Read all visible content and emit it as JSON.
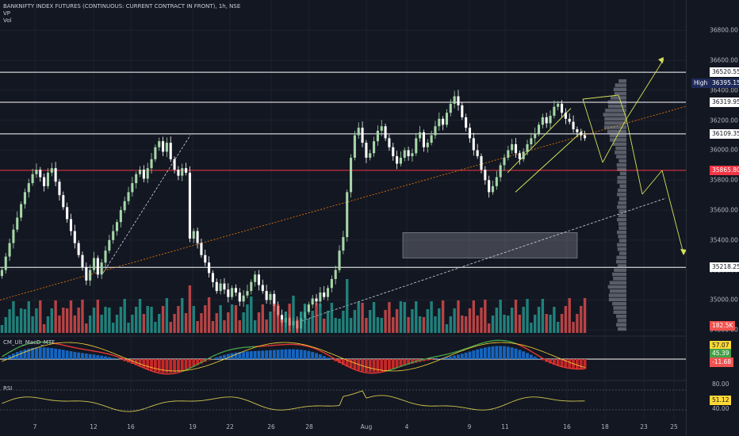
{
  "header": {
    "title": "BANKNIFTY INDEX FUTURES (CONTINUOUS: CURRENT CONTRACT IN FRONT), 1h, NSE",
    "line2": "VP",
    "line3": "Vol"
  },
  "panes": {
    "macd_label": "CM_Ult_MacD_MTF",
    "rsi_label": "RSI"
  },
  "colors": {
    "background": "#131722",
    "up": "#26a69a",
    "down": "#ef5350",
    "candle_up": "#a5d6a7",
    "candle_down": "#ffffff",
    "projection": "#d4e157",
    "resistance_red": "#f23645",
    "label_blue": "#1e2a5a"
  },
  "chart_data": {
    "type": "line",
    "title": "BANKNIFTY INDEX FUTURES (CONTINUOUS: CURRENT CONTRACT IN FRONT), 1h, NSE",
    "y_axis_ticks": [
      "36800.00",
      "36600.00",
      "36400.00",
      "36200.00",
      "36000.00",
      "35800.00",
      "35600.00",
      "35400.00",
      "35200.00",
      "35000.00",
      "34800.00"
    ],
    "ylim": [
      34780,
      36950
    ],
    "x_axis_ticks": [
      "7",
      "12",
      "16",
      "19",
      "22",
      "26",
      "28",
      "Aug",
      "4",
      "9",
      "11",
      "16",
      "18",
      "23",
      "25"
    ],
    "horizontal_levels": [
      {
        "label": "36520.55",
        "value": 36520.55,
        "color": "#ffffff"
      },
      {
        "label": "36319.95",
        "value": 36319.95,
        "color": "#ffffff"
      },
      {
        "label": "36109.35",
        "value": 36109.35,
        "color": "#ffffff"
      },
      {
        "label": "35865.80",
        "value": 35865.8,
        "color": "#f23645"
      },
      {
        "label": "35218.25",
        "value": 35218.25,
        "color": "#ffffff"
      }
    ],
    "high_label": "High",
    "high_value": "36395.15",
    "series": [
      {
        "values": [
          35200,
          35290,
          35380,
          35470,
          35550,
          35640,
          35720,
          35780,
          35840,
          35870,
          35820,
          35760,
          35850,
          35880,
          35790,
          35700,
          35620,
          35540,
          35460,
          35380,
          35300,
          35220,
          35130,
          35200,
          35280,
          35170,
          35250,
          35330,
          35400,
          35460,
          35520,
          35600,
          35660,
          35720,
          35780,
          35840,
          35870,
          35810,
          35880,
          35940,
          36020,
          36060,
          35990,
          36050,
          35940,
          35870,
          35830,
          35880,
          35850,
          35410,
          35460,
          35380,
          35300,
          35250,
          35180,
          35120,
          35060,
          35110,
          35070,
          35020,
          35080,
          35050,
          34990,
          35030,
          35060,
          35120,
          35170,
          35100,
          35060,
          35000,
          35040,
          34960,
          34900,
          34850,
          34880,
          34830,
          34860,
          34810,
          34880,
          34920,
          34970,
          35010,
          34990,
          35050,
          35020,
          35080,
          35140,
          35200,
          35330,
          35420,
          35720,
          35950,
          36100,
          36150,
          36050,
          35950,
          35980,
          36060,
          36130,
          36160,
          36080,
          36020,
          35960,
          35910,
          35950,
          36000,
          35960,
          35980,
          36080,
          36120,
          36020,
          36050,
          36100,
          36160,
          36210,
          36170,
          36250,
          36310,
          36360,
          36300,
          36220,
          36150,
          36080,
          36000,
          35960,
          35870,
          35800,
          35720,
          35760,
          35820,
          35900,
          35950,
          36000,
          36040,
          35980,
          35940,
          35990,
          36040,
          36080,
          36110,
          36170,
          36220,
          36180,
          36230,
          36290,
          36310,
          36250,
          36210,
          36190,
          36140,
          36120,
          36100,
          36080
        ]
      }
    ],
    "volume_label": "182.5K",
    "macd_ticks": [
      "57.07",
      "45.39",
      "-11.68"
    ],
    "rsi_ticks": [
      "80.00",
      "51.12",
      "40.00"
    ]
  }
}
